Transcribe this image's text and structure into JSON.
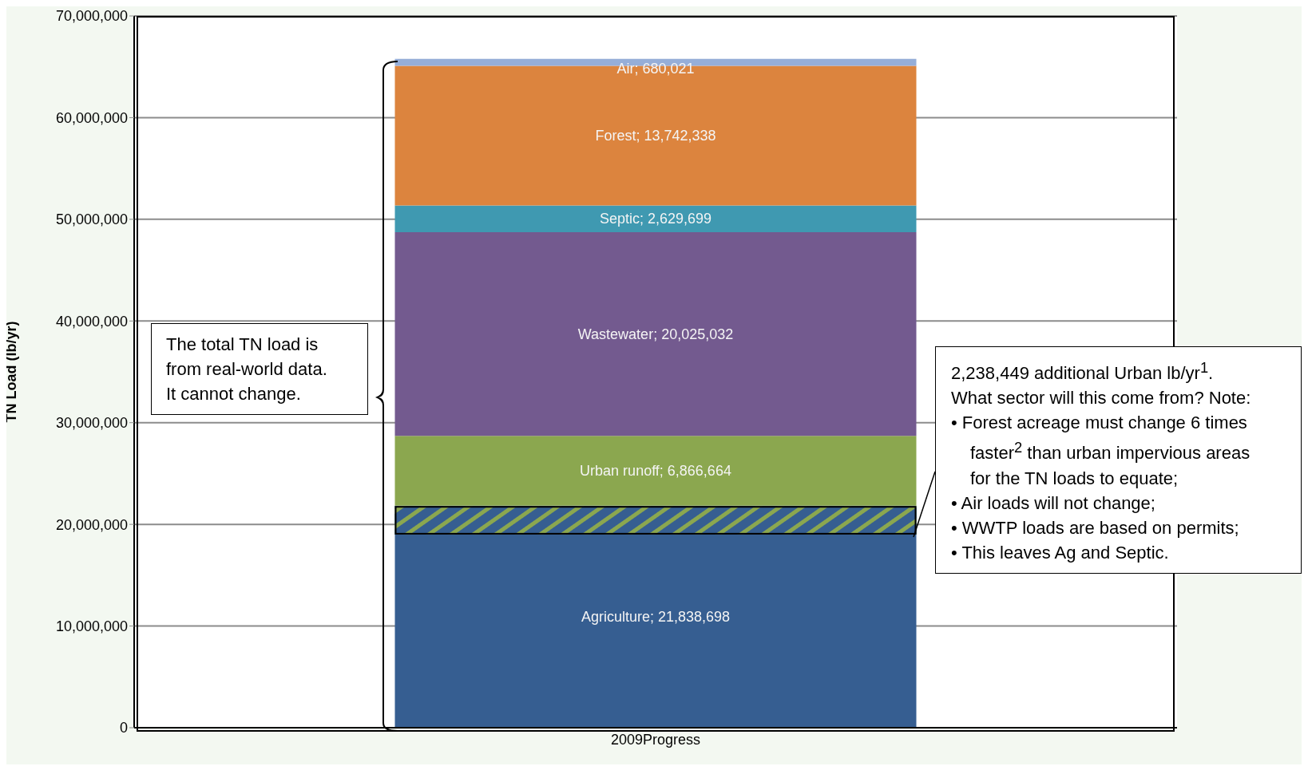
{
  "chart_data": {
    "type": "bar",
    "stacked": true,
    "ylabel": "TN Load (lb/yr)",
    "categories": [
      "2009Progress"
    ],
    "series": [
      {
        "color": "#365e91",
        "values": [
          21838698
        ],
        "value_labels": [
          "Agriculture; 21,838,698"
        ]
      },
      {
        "color": "#8ba74f",
        "values": [
          6866664
        ],
        "value_labels": [
          "Urban runoff; 6,866,664"
        ]
      },
      {
        "color": "#735a8f",
        "values": [
          20025032
        ],
        "value_labels": [
          "Wastewater; 20,025,032"
        ]
      },
      {
        "color": "#3f99b1",
        "values": [
          2629699
        ],
        "value_labels": [
          "Septic; 2,629,699"
        ]
      },
      {
        "color": "#dc843e",
        "values": [
          13742338
        ],
        "value_labels": [
          "Forest; 13,742,338"
        ]
      },
      {
        "color": "#96aed8",
        "values": [
          680021
        ],
        "value_labels": [
          "Air; 680,021"
        ]
      }
    ],
    "ylim": [
      0,
      70000000
    ],
    "yticks": [
      {
        "value": 0,
        "label": "0"
      },
      {
        "value": 10000000,
        "label": "10,000,000"
      },
      {
        "value": 20000000,
        "label": "20,000,000"
      },
      {
        "value": 30000000,
        "label": "30,000,000"
      },
      {
        "value": 40000000,
        "label": "40,000,000"
      },
      {
        "value": 50000000,
        "label": "50,000,000"
      },
      {
        "value": 60000000,
        "label": "60,000,000"
      },
      {
        "value": 70000000,
        "label": "70,000,000"
      }
    ],
    "grid": "y",
    "legend": false,
    "bands": [
      {
        "axis": "y",
        "from": 19000000,
        "to": 21800000,
        "color": "#8ba74f"
      }
    ],
    "annotations": [
      "The total TN load is from real-world data. It cannot change.",
      "2,238,449 additional Urban lb/yr$^{1}$. What sector will this come from? Note:",
      "• Forest acreage must change 6 times faster$^{2}$ than urban impervious areas for the TN loads to equate;",
      "• Air loads will not change;",
      "• WWTP loads are based on permits;",
      "• This leaves Ag and Septic."
    ]
  }
}
